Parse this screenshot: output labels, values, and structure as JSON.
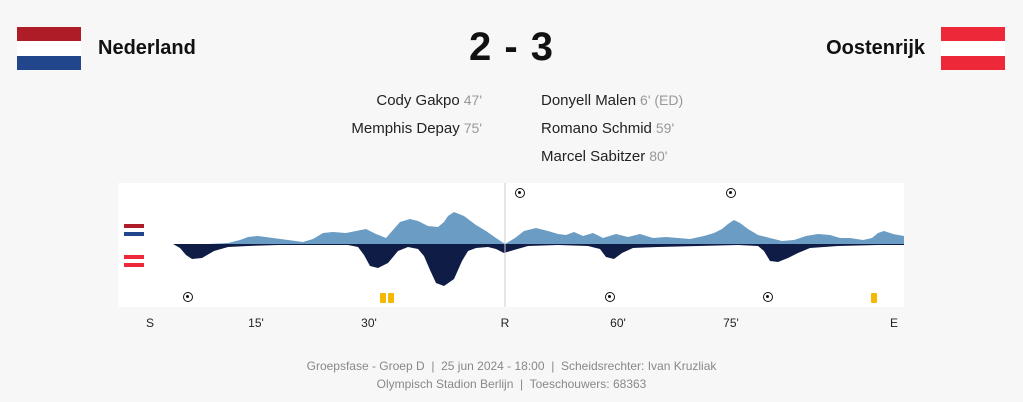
{
  "home": {
    "name": "Nederland",
    "flag_colors": [
      "#ae1c28",
      "#ffffff",
      "#21468b"
    ]
  },
  "away": {
    "name": "Oostenrijk",
    "flag_colors": [
      "#ed2939",
      "#ffffff",
      "#ed2939"
    ]
  },
  "score": "2 - 3",
  "home_scorers": [
    {
      "name": "Cody Gakpo",
      "minute": "47'"
    },
    {
      "name": "Memphis Depay",
      "minute": "75'"
    }
  ],
  "away_scorers": [
    {
      "name": "Donyell Malen",
      "minute": "6' (ED)"
    },
    {
      "name": "Romano Schmid",
      "minute": "59'"
    },
    {
      "name": "Marcel Sabitzer",
      "minute": "80'"
    }
  ],
  "timeline": {
    "ticks": [
      "S",
      "15'",
      "30'",
      "R",
      "60'",
      "75'",
      "E"
    ],
    "home_color": "#6a9cc4",
    "away_color": "#0f1c45",
    "card_color": "#f5b800"
  },
  "footer": {
    "line1": "Groepsfase - Groep D  |  25 jun 2024 - 18:00  |  Scheidsrechter: Ivan Kruzliak",
    "line2": "Olympisch Stadion Berlijn  |  Toeschouwers: 68363"
  }
}
